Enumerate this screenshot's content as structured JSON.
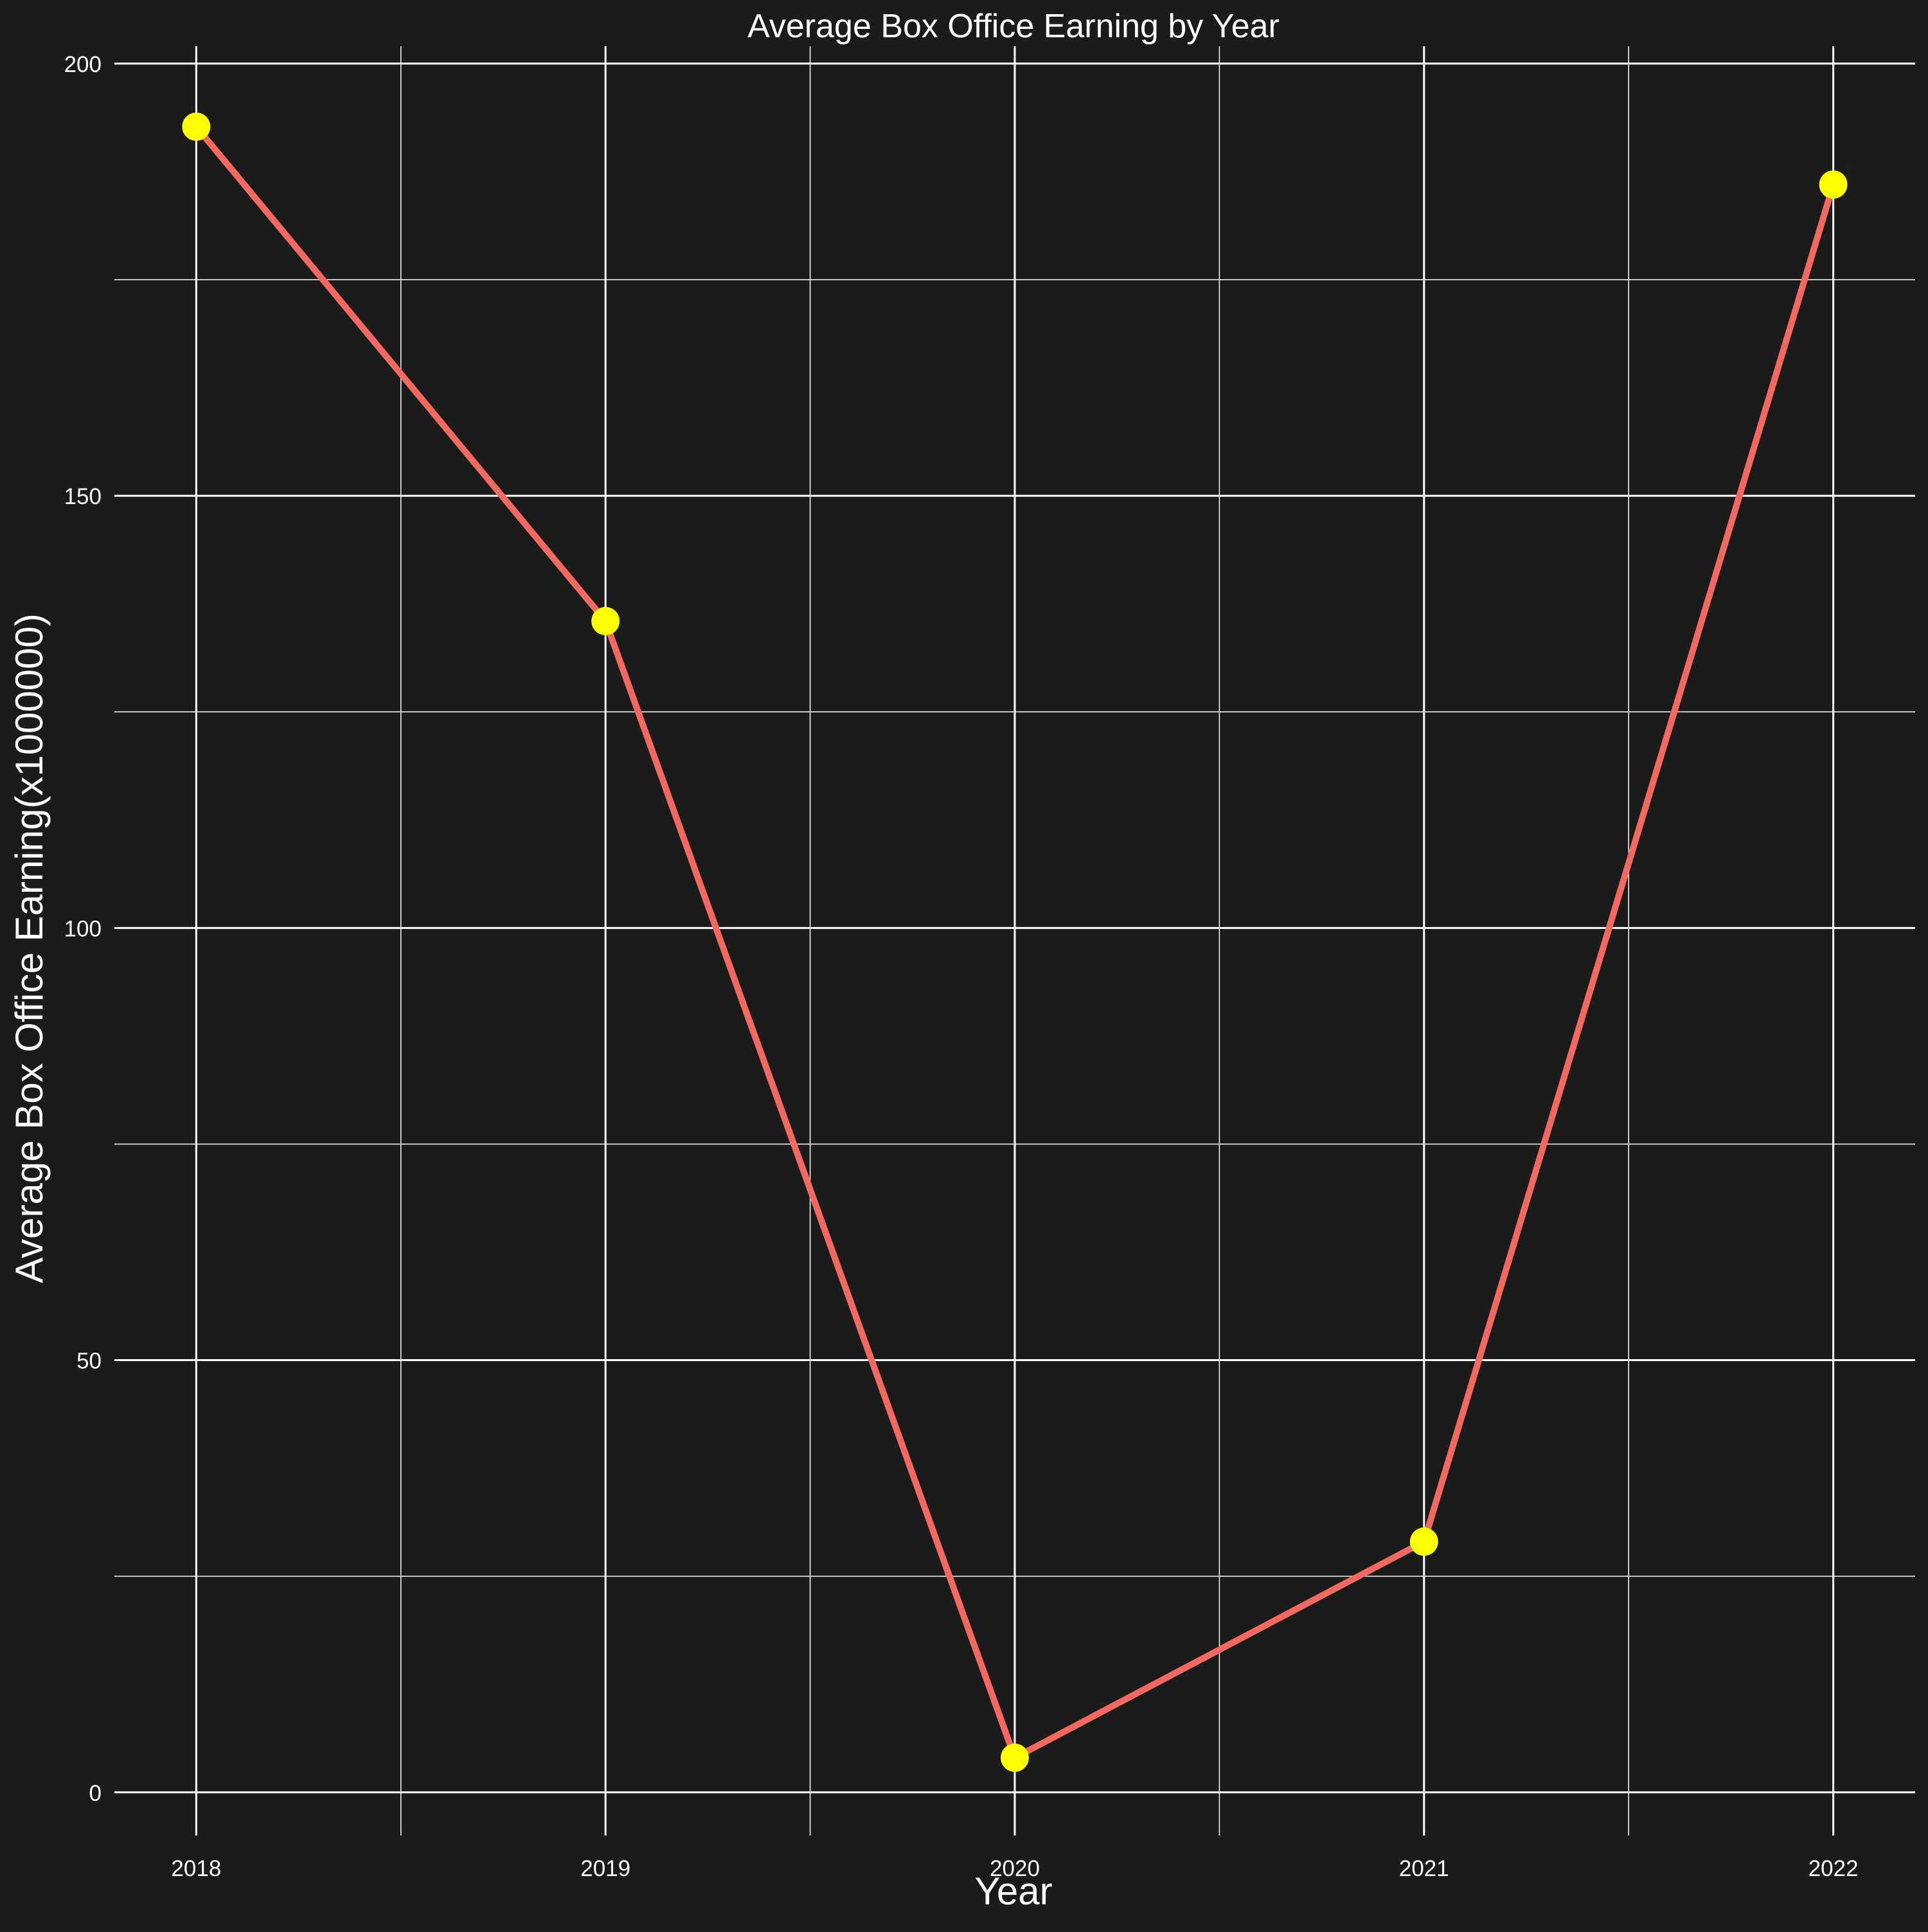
{
  "chart_data": {
    "type": "line",
    "title": "Average Box Office Earning by Year",
    "xlabel": "Year",
    "ylabel": "Average Box Office Earning(x1000000)",
    "x": [
      2018,
      2019,
      2020,
      2021,
      2022
    ],
    "x_tick_labels": [
      "2018",
      "2019",
      "2020",
      "2021",
      "2022"
    ],
    "y_ticks": [
      0,
      50,
      100,
      150,
      200
    ],
    "y_tick_labels": [
      "0",
      "50",
      "100",
      "150",
      "200"
    ],
    "xlim": [
      2017.8,
      2022.2
    ],
    "ylim": [
      -5,
      202
    ],
    "series": [
      {
        "values": [
          192.7,
          135.5,
          4.0,
          29.0,
          186.0
        ]
      }
    ],
    "grid": true,
    "legend": "none",
    "colors": {
      "background": "#1b1b1b",
      "line": "#f3685f",
      "points": "#ffff00",
      "grid": "#ffffff",
      "text": "#ffffff"
    }
  }
}
